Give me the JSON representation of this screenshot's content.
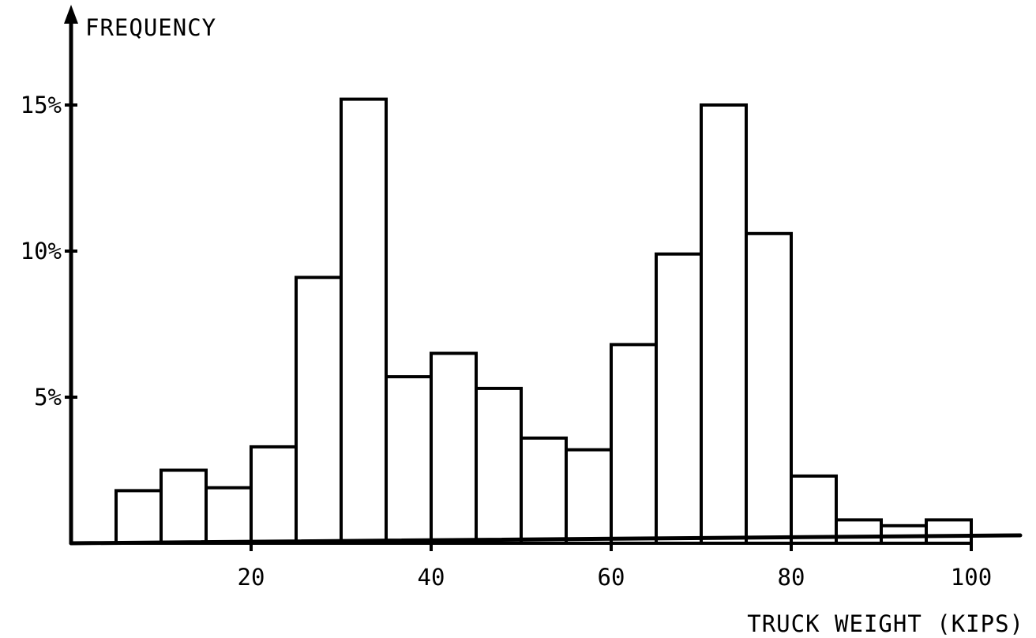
{
  "chart_data": {
    "type": "bar",
    "title": "",
    "ylabel": "FREQUENCY",
    "xlabel": "TRUCK WEIGHT (KIPS)",
    "x_range": [
      0,
      105
    ],
    "ylim": [
      0,
      15
    ],
    "bin_width": 5,
    "x_ticks": [
      20,
      40,
      60,
      80,
      100
    ],
    "x_tick_labels": [
      "20",
      "40",
      "60",
      "80",
      "100"
    ],
    "y_ticks": [
      5,
      10,
      15
    ],
    "y_tick_labels": [
      "5%",
      "10%",
      "15%"
    ],
    "bins": [
      {
        "start": 5,
        "end": 10,
        "value": 1.8
      },
      {
        "start": 10,
        "end": 15,
        "value": 2.5
      },
      {
        "start": 15,
        "end": 20,
        "value": 1.9
      },
      {
        "start": 20,
        "end": 25,
        "value": 3.3
      },
      {
        "start": 25,
        "end": 30,
        "value": 9.1
      },
      {
        "start": 30,
        "end": 35,
        "value": 15.2
      },
      {
        "start": 35,
        "end": 40,
        "value": 5.7
      },
      {
        "start": 40,
        "end": 45,
        "value": 6.5
      },
      {
        "start": 45,
        "end": 50,
        "value": 5.3
      },
      {
        "start": 50,
        "end": 55,
        "value": 3.6
      },
      {
        "start": 55,
        "end": 60,
        "value": 3.2
      },
      {
        "start": 60,
        "end": 65,
        "value": 6.8
      },
      {
        "start": 65,
        "end": 70,
        "value": 9.9
      },
      {
        "start": 70,
        "end": 75,
        "value": 15.0
      },
      {
        "start": 75,
        "end": 80,
        "value": 10.6
      },
      {
        "start": 80,
        "end": 85,
        "value": 2.3
      },
      {
        "start": 85,
        "end": 90,
        "value": 0.8
      },
      {
        "start": 90,
        "end": 95,
        "value": 0.6
      },
      {
        "start": 95,
        "end": 100,
        "value": 0.8
      }
    ],
    "grid": false,
    "legend": "none"
  }
}
